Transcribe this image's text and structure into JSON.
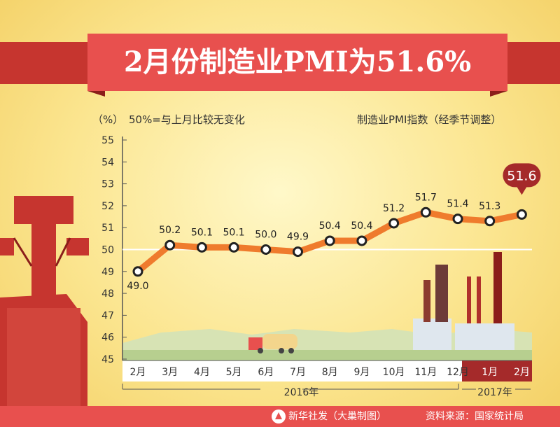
{
  "title": "2月份制造业PMI为51.6%",
  "unit_label": "（%）",
  "note": "50%=与上月比较无变化",
  "series_label": "制造业PMI指数（经季节调整）",
  "year_2016": "2016年",
  "year_2017": "2017年",
  "footer": {
    "credit": "新华社发（大巢制图）",
    "source": "资料来源：国家统计局"
  },
  "colors": {
    "line": "#ef7b2d",
    "banner": "#e8504e",
    "highlight": "#a52a2a",
    "axis": "#555555"
  },
  "chart_data": {
    "type": "line",
    "title": "2月份制造业PMI为51.6%",
    "ylabel": "（%）",
    "ylim": [
      45,
      55
    ],
    "yticks": [
      45,
      46,
      47,
      48,
      49,
      50,
      51,
      52,
      53,
      54,
      55
    ],
    "categories": [
      "2月",
      "3月",
      "4月",
      "5月",
      "6月",
      "7月",
      "8月",
      "9月",
      "10月",
      "11月",
      "12月",
      "1月",
      "2月"
    ],
    "values": [
      49.0,
      50.2,
      50.1,
      50.1,
      50.0,
      49.9,
      50.4,
      50.4,
      51.2,
      51.7,
      51.4,
      51.3,
      51.6
    ],
    "value_labels": [
      "49.0",
      "50.2",
      "50.1",
      "50.1",
      "50.0",
      "49.9",
      "50.4",
      "50.4",
      "51.2",
      "51.7",
      "51.4",
      "51.3",
      "51.6"
    ],
    "series": [
      {
        "name": "制造业PMI指数（经季节调整）",
        "values": [
          49.0,
          50.2,
          50.1,
          50.1,
          50.0,
          49.9,
          50.4,
          50.4,
          51.2,
          51.7,
          51.4,
          51.3,
          51.6
        ]
      }
    ],
    "reference_line": 50,
    "year_groups": [
      {
        "label": "2016年",
        "from": 0,
        "to": 10
      },
      {
        "label": "2017年",
        "from": 11,
        "to": 12
      }
    ]
  }
}
